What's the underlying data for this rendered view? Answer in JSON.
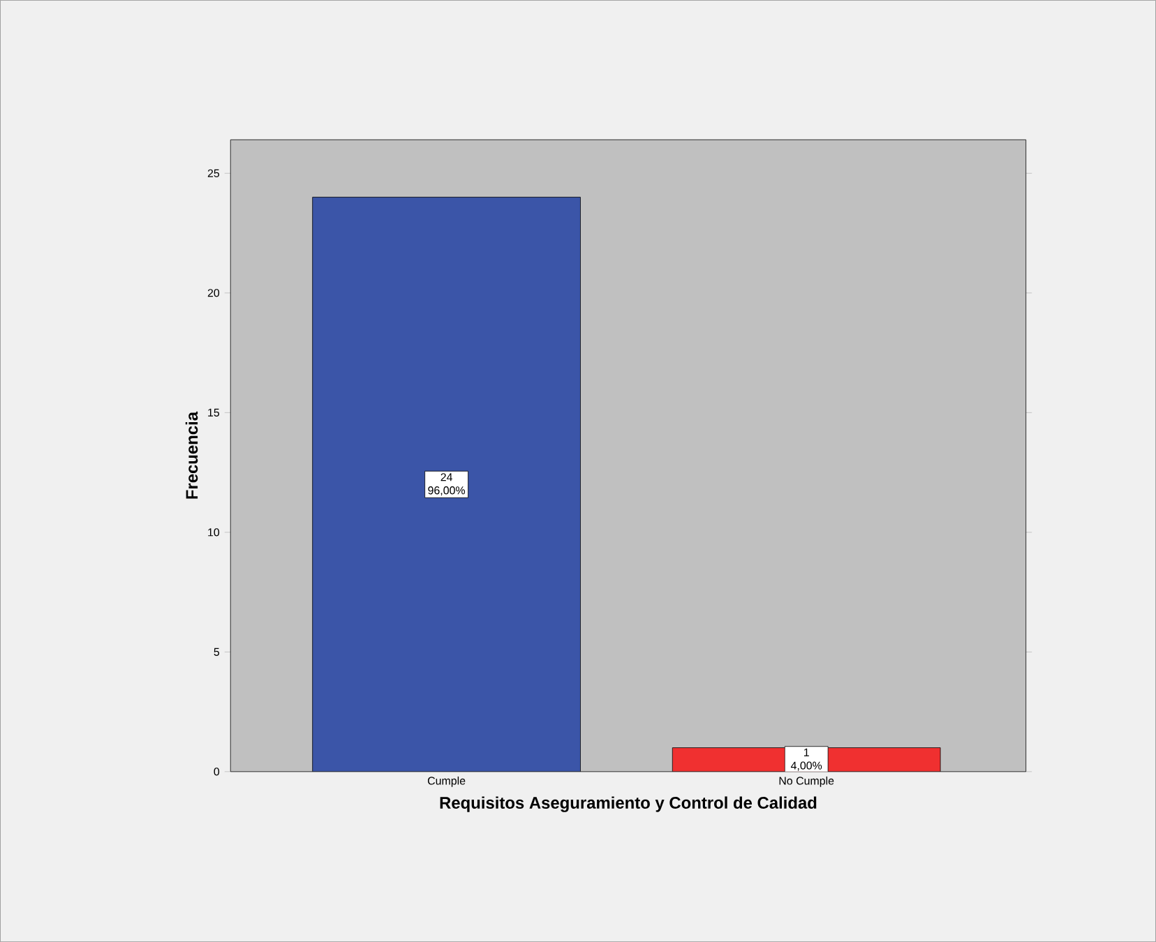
{
  "chart_data": {
    "type": "bar",
    "categories": [
      "Cumple",
      "No Cumple"
    ],
    "values": [
      24,
      1
    ],
    "colors": [
      "#3b55a8",
      "#f03030"
    ],
    "value_labels": [
      "24 96,00%",
      "1 4,00%"
    ],
    "xlabel": "Requisitos Aseguramiento y Control de Calidad",
    "ylabel": "Frecuencia",
    "ylim": [
      0,
      26.4
    ],
    "yticks": [
      0,
      5,
      10,
      15,
      20,
      25
    ],
    "grid": false
  }
}
